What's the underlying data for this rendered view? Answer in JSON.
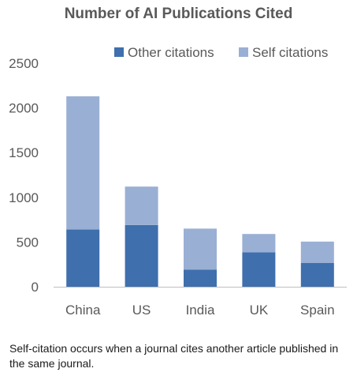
{
  "chart_data": {
    "type": "bar",
    "stacked": true,
    "title": "Number of AI Publications Cited",
    "categories": [
      "China",
      "US",
      "India",
      "UK",
      "Spain"
    ],
    "series": [
      {
        "name": "Other citations",
        "values": [
          640,
          690,
          190,
          385,
          265
        ],
        "color": "#3f6fad"
      },
      {
        "name": "Self citations",
        "values": [
          1490,
          430,
          460,
          205,
          240
        ],
        "color": "#9aafd4"
      }
    ],
    "yticks": [
      0,
      500,
      1000,
      1500,
      2000,
      2500
    ],
    "ylim": [
      0,
      2500
    ],
    "xlabel": "",
    "ylabel": "",
    "grid": false,
    "legend_position": "top-right"
  },
  "caption": "Self-citation occurs when a journal cites another article published in the same journal."
}
